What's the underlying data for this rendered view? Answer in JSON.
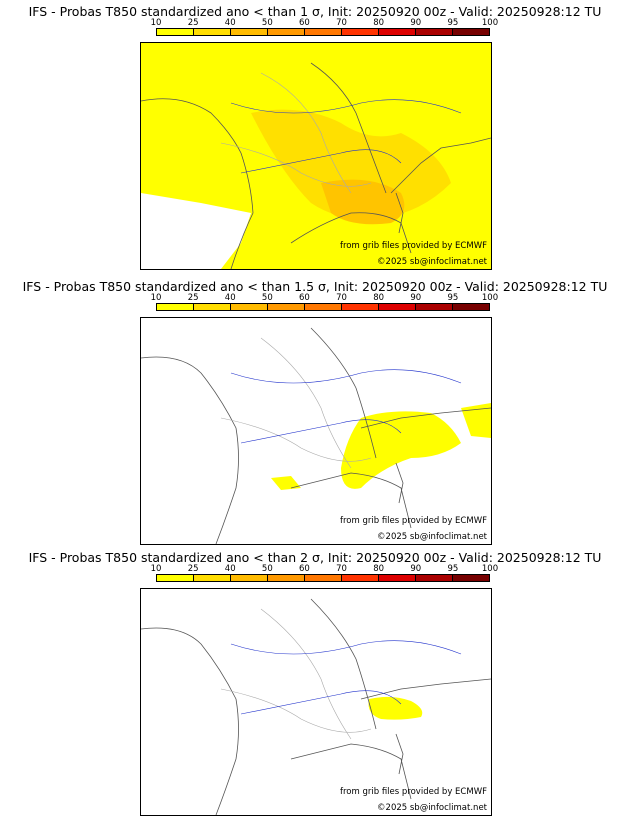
{
  "panels": [
    {
      "title": "IFS - Probas T850  standardized ano < than 1 σ, Init: 20250920 00z - Valid: 20250928:12 TU",
      "coverage": "wide"
    },
    {
      "title": "IFS - Probas T850  standardized ano < than 1.5 σ, Init: 20250920 00z - Valid: 20250928:12 TU",
      "coverage": "medium"
    },
    {
      "title": "IFS - Probas T850  standardized ano < than 2 σ, Init: 20250920 00z - Valid: 20250928:12 TU",
      "coverage": "small"
    }
  ],
  "scale": {
    "ticks": [
      "10",
      "25",
      "40",
      "50",
      "60",
      "70",
      "80",
      "90",
      "95",
      "100"
    ],
    "colors": [
      "#ffff00",
      "#ffdd00",
      "#ffbb00",
      "#ff9900",
      "#ff7700",
      "#ff3300",
      "#dd0000",
      "#aa0000",
      "#770000"
    ]
  },
  "credits": {
    "source": "from grib files provided by ECMWF",
    "copyright": "©2025 sb@infoclimat.net"
  },
  "colors": {
    "low": "#ffff00",
    "mid": "#ffcc00",
    "borders": "#555555",
    "rivers": "#2233cc",
    "subborders": "#aaaaaa"
  }
}
